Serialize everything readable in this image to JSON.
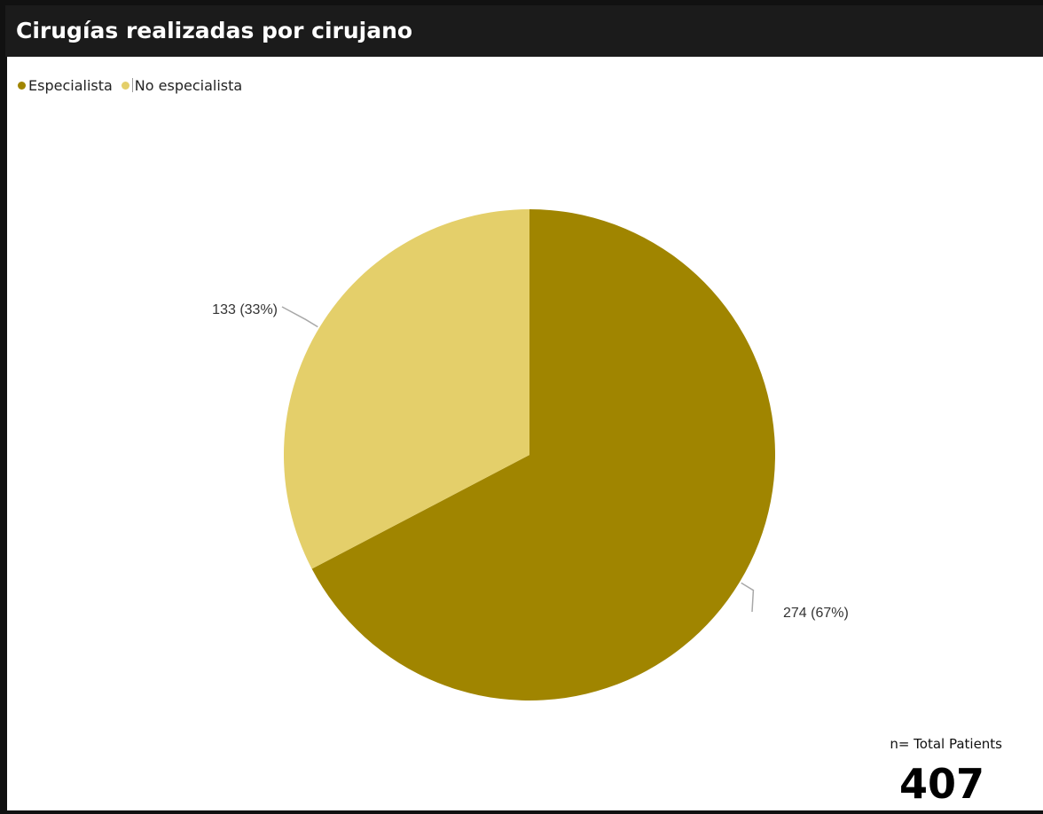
{
  "title": "Cirugías realizadas por cirujano",
  "chart_data": {
    "type": "pie",
    "title": "",
    "legend_position": "top-left",
    "series": [
      {
        "name": "Especialista",
        "value": 274,
        "percent": 67,
        "label": "274 (67%)",
        "color": "#a08500"
      },
      {
        "name": "No especialista",
        "value": 133,
        "percent": 33,
        "label": "133 (33%)",
        "color": "#e4cf6a"
      }
    ]
  },
  "total": {
    "caption": "n= Total Patients",
    "value": "407"
  }
}
